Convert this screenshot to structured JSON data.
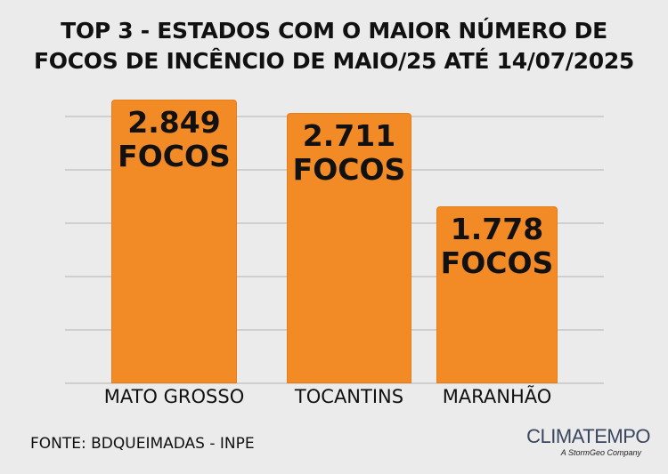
{
  "chart_data": {
    "type": "bar",
    "title": "TOP 3 - ESTADOS COM O MAIOR NÚMERO DE FOCOS DE INCÊNCIO DE MAIO/25 ATÉ 14/07/2025",
    "title_lines": [
      "TOP 3 - ESTADOS COM O MAIOR NÚMERO DE",
      "FOCOS DE INCÊNCIO DE MAIO/25 ATÉ 14/07/2025"
    ],
    "categories": [
      "MATO GROSSO",
      "TOCANTINS",
      "MARANHÃO"
    ],
    "values": [
      2849,
      2711,
      1778
    ],
    "data_labels": [
      "2.849",
      "2.711",
      "1.778"
    ],
    "unit_label": "FOCOS",
    "grid": true,
    "bar_color": "#f28a25"
  },
  "footer": {
    "source": "FONTE: BDQUEIMADAS - INPE",
    "logo": "CLIMATEMPO",
    "logo_tagline": "A StormGeo Company"
  }
}
